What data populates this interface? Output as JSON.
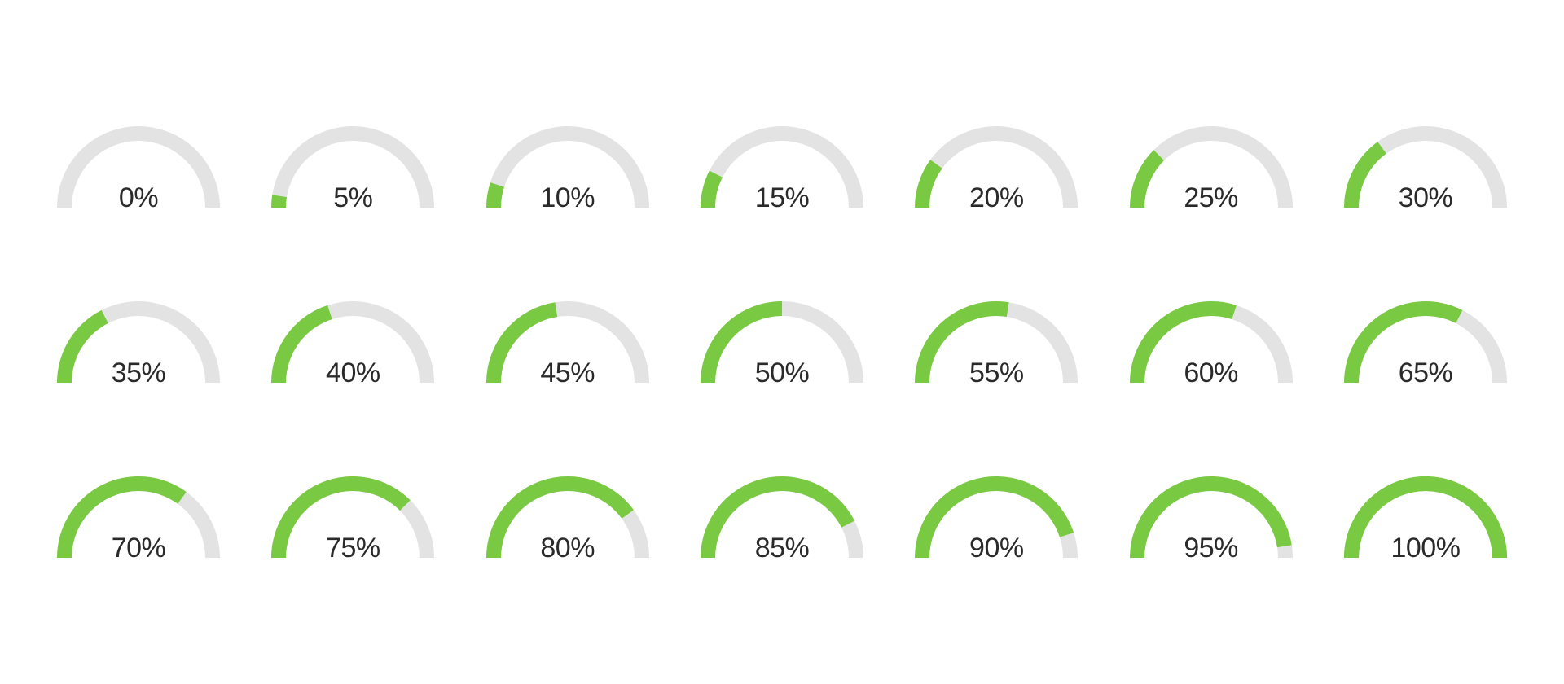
{
  "type": "infographic",
  "description": "Set of semicircle arc percentage diagrams from 0 to 100 in steps of 5",
  "background_color": "#ffffff",
  "track_color": "#e3e3e3",
  "progress_color": "#7ac943",
  "text_color": "#2a2a2a",
  "font_size": 34,
  "font_weight": 300,
  "columns": 7,
  "rows": 3,
  "gauge": {
    "outer_radius": 100,
    "inner_radius": 82,
    "start_angle_deg": 180,
    "sweep_deg": 180
  },
  "gauges": [
    {
      "value": 0,
      "label": "0%"
    },
    {
      "value": 5,
      "label": "5%"
    },
    {
      "value": 10,
      "label": "10%"
    },
    {
      "value": 15,
      "label": "15%"
    },
    {
      "value": 20,
      "label": "20%"
    },
    {
      "value": 25,
      "label": "25%"
    },
    {
      "value": 30,
      "label": "30%"
    },
    {
      "value": 35,
      "label": "35%"
    },
    {
      "value": 40,
      "label": "40%"
    },
    {
      "value": 45,
      "label": "45%"
    },
    {
      "value": 50,
      "label": "50%"
    },
    {
      "value": 55,
      "label": "55%"
    },
    {
      "value": 60,
      "label": "60%"
    },
    {
      "value": 65,
      "label": "65%"
    },
    {
      "value": 70,
      "label": "70%"
    },
    {
      "value": 75,
      "label": "75%"
    },
    {
      "value": 80,
      "label": "80%"
    },
    {
      "value": 85,
      "label": "85%"
    },
    {
      "value": 90,
      "label": "90%"
    },
    {
      "value": 95,
      "label": "95%"
    },
    {
      "value": 100,
      "label": "100%"
    }
  ]
}
